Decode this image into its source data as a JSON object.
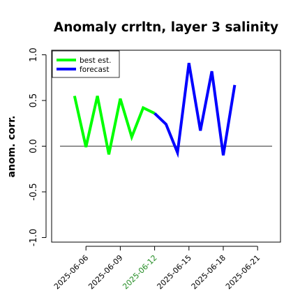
{
  "chart_data": {
    "type": "line",
    "title": "Anomaly crrltn, layer 3 salinity",
    "xlabel": "",
    "ylabel": "anom. corr.",
    "xlim": [
      "2025-06-03",
      "2025-06-23"
    ],
    "ylim": [
      -1.05,
      1.05
    ],
    "yticks": [
      -1.0,
      -0.5,
      0.0,
      0.5,
      1.0
    ],
    "yticklabels": [
      "-1.0",
      "-0.5",
      "0.0",
      "0.5",
      "1.0"
    ],
    "xticks": [
      "2025-06-06",
      "2025-06-09",
      "2025-06-12",
      "2025-06-15",
      "2025-06-18",
      "2025-06-21"
    ],
    "xticklabels": [
      "2025-06-06",
      "2025-06-09",
      "2025-06-12",
      "2025-06-15",
      "2025-06-18",
      "2025-06-21"
    ],
    "xtick_colors": [
      "#000000",
      "#000000",
      "#228B22",
      "#000000",
      "#000000",
      "#000000"
    ],
    "reference_line": {
      "y": 0.0,
      "color": "#555555"
    },
    "grid": false,
    "legend_position": "top-left",
    "series": [
      {
        "name": "best est.",
        "color": "#00ff00",
        "x": [
          "2025-06-05",
          "2025-06-06",
          "2025-06-07",
          "2025-06-08",
          "2025-06-09",
          "2025-06-10",
          "2025-06-11",
          "2025-06-12"
        ],
        "y": [
          0.55,
          -0.01,
          0.55,
          -0.09,
          0.52,
          0.1,
          0.42,
          0.36
        ]
      },
      {
        "name": "forecast",
        "color": "#0000ff",
        "x": [
          "2025-06-12",
          "2025-06-13",
          "2025-06-14",
          "2025-06-15",
          "2025-06-16",
          "2025-06-17",
          "2025-06-18",
          "2025-06-19"
        ],
        "y": [
          0.36,
          0.24,
          -0.07,
          0.91,
          0.17,
          0.82,
          -0.1,
          0.67
        ]
      }
    ]
  }
}
